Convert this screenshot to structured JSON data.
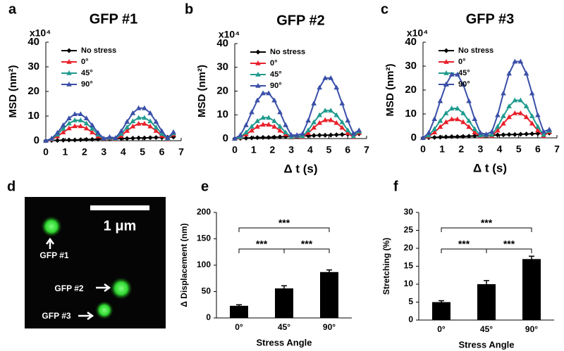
{
  "chart_data": [
    {
      "type": "line",
      "label": "a",
      "title": "GFP #1",
      "y_multiplier": "x10⁴",
      "ylabel": "MSD (nm²)",
      "x": [
        0,
        0.3,
        0.6,
        0.9,
        1.2,
        1.5,
        1.8,
        2.1,
        2.4,
        2.7,
        3.0,
        3.3,
        3.6,
        3.9,
        4.2,
        4.5,
        4.8,
        5.1,
        5.4,
        5.7,
        6.0,
        6.3,
        6.6
      ],
      "xlim": [
        0,
        7
      ],
      "xticks": [
        0,
        1,
        2,
        3,
        4,
        5,
        6,
        7
      ],
      "ylim": [
        0,
        40
      ],
      "yticks": [
        0,
        10,
        20,
        30,
        40
      ],
      "series": [
        {
          "name": "No stress",
          "color": "#000000",
          "marker": "diamond",
          "values": [
            0,
            0.1,
            0.1,
            0.2,
            0.3,
            0.3,
            0.4,
            0.5,
            0.5,
            0.6,
            0.7,
            0.7,
            0.8,
            0.9,
            0.9,
            1.0,
            1.1,
            1.1,
            1.2,
            1.3,
            1.3,
            1.4,
            1.5
          ]
        },
        {
          "name": "0°",
          "color": "#e8202a",
          "marker": "triangle",
          "values": [
            0,
            0.5,
            1.8,
            3.4,
            5.0,
            5.9,
            5.9,
            5.0,
            3.4,
            1.8,
            0.5,
            1.0,
            0.6,
            2.0,
            4.0,
            5.8,
            6.9,
            6.9,
            5.8,
            4.0,
            2.0,
            0.6,
            2.5
          ]
        },
        {
          "name": "45°",
          "color": "#1f9b8e",
          "marker": "triangle",
          "values": [
            0,
            0.7,
            2.5,
            4.9,
            7.0,
            8.3,
            8.3,
            7.0,
            4.9,
            2.5,
            0.7,
            1.2,
            0.8,
            2.8,
            5.4,
            7.9,
            9.3,
            9.3,
            7.9,
            5.4,
            2.8,
            0.8,
            3.0
          ]
        },
        {
          "name": "90°",
          "color": "#3a4fa8",
          "marker": "triangle",
          "values": [
            0,
            0.9,
            3.2,
            6.3,
            9.1,
            10.8,
            10.8,
            9.1,
            6.3,
            3.2,
            0.9,
            1.5,
            1.1,
            3.9,
            7.7,
            11.2,
            13.2,
            13.2,
            11.2,
            7.7,
            3.9,
            1.1,
            3.5
          ]
        }
      ]
    },
    {
      "type": "line",
      "label": "b",
      "title": "GFP #2",
      "y_multiplier": "x10⁴",
      "ylabel": "MSD (nm²)",
      "xlabel": "Δ t (s)",
      "x": [
        0,
        0.3,
        0.6,
        0.9,
        1.2,
        1.5,
        1.8,
        2.1,
        2.4,
        2.7,
        3.0,
        3.3,
        3.6,
        3.9,
        4.2,
        4.5,
        4.8,
        5.1,
        5.4,
        5.7,
        6.0,
        6.3,
        6.6
      ],
      "xlim": [
        0,
        7
      ],
      "xticks": [
        0,
        1,
        2,
        3,
        4,
        5,
        6,
        7
      ],
      "ylim": [
        0,
        40
      ],
      "yticks": [
        0,
        10,
        20,
        30,
        40
      ],
      "series": [
        {
          "name": "No stress",
          "color": "#000000",
          "marker": "diamond",
          "values": [
            0,
            0.1,
            0.2,
            0.3,
            0.4,
            0.5,
            0.5,
            0.6,
            0.7,
            0.8,
            0.9,
            1.0,
            1.1,
            1.2,
            1.3,
            1.4,
            1.4,
            1.5,
            1.6,
            1.7,
            1.8,
            1.9,
            2.0
          ]
        },
        {
          "name": "0°",
          "color": "#e8202a",
          "marker": "triangle",
          "values": [
            0,
            0.5,
            1.8,
            3.4,
            5.0,
            5.9,
            5.9,
            5.0,
            3.4,
            1.8,
            0.5,
            1.0,
            0.6,
            2.3,
            4.6,
            6.6,
            7.8,
            7.8,
            6.6,
            4.6,
            2.3,
            0.6,
            2.5
          ]
        },
        {
          "name": "45°",
          "color": "#1f9b8e",
          "marker": "triangle",
          "values": [
            0,
            0.7,
            2.6,
            5.1,
            7.4,
            8.8,
            8.8,
            7.4,
            5.1,
            2.6,
            0.7,
            1.2,
            0.9,
            3.5,
            6.9,
            9.9,
            11.8,
            11.8,
            9.9,
            6.9,
            3.5,
            0.9,
            3.0
          ]
        },
        {
          "name": "90°",
          "color": "#3a4fa8",
          "marker": "triangle",
          "values": [
            0,
            1.5,
            5.7,
            11.1,
            16.1,
            19.1,
            19.1,
            16.1,
            11.1,
            5.7,
            1.5,
            1.5,
            2.1,
            7.6,
            14.8,
            21.5,
            25.5,
            25.5,
            21.5,
            14.8,
            7.6,
            2.1,
            3.5
          ]
        }
      ]
    },
    {
      "type": "line",
      "label": "c",
      "title": "GFP #3",
      "y_multiplier": "x10⁴",
      "ylabel": "MSD (nm²)",
      "xlabel": "Δ t (s)",
      "x": [
        0,
        0.3,
        0.6,
        0.9,
        1.2,
        1.5,
        1.8,
        2.1,
        2.4,
        2.7,
        3.0,
        3.3,
        3.6,
        3.9,
        4.2,
        4.5,
        4.8,
        5.1,
        5.4,
        5.7,
        6.0,
        6.3,
        6.6
      ],
      "xlim": [
        0,
        7
      ],
      "xticks": [
        0,
        1,
        2,
        3,
        4,
        5,
        6,
        7
      ],
      "ylim": [
        0,
        40
      ],
      "yticks": [
        0,
        10,
        20,
        30,
        40
      ],
      "series": [
        {
          "name": "No stress",
          "color": "#000000",
          "marker": "diamond",
          "values": [
            0,
            0.1,
            0.2,
            0.3,
            0.4,
            0.5,
            0.5,
            0.6,
            0.7,
            0.8,
            0.9,
            1.0,
            1.1,
            1.2,
            1.3,
            1.4,
            1.4,
            1.5,
            1.6,
            1.7,
            1.8,
            1.9,
            2.0
          ]
        },
        {
          "name": "0°",
          "color": "#e8202a",
          "marker": "triangle",
          "values": [
            0,
            0.6,
            2.3,
            4.6,
            6.6,
            7.8,
            7.8,
            6.6,
            4.6,
            2.3,
            0.6,
            1.0,
            0.8,
            3.1,
            6.0,
            8.7,
            10.3,
            10.3,
            8.7,
            6.0,
            3.1,
            0.8,
            2.5
          ]
        },
        {
          "name": "45°",
          "color": "#1f9b8e",
          "marker": "triangle",
          "values": [
            0,
            1.0,
            3.7,
            7.1,
            10.3,
            12.3,
            12.3,
            10.3,
            7.1,
            3.7,
            1.0,
            1.2,
            1.3,
            4.7,
            9.1,
            13.2,
            15.7,
            15.7,
            13.2,
            9.1,
            4.7,
            1.3,
            3.0
          ]
        },
        {
          "name": "90°",
          "color": "#3a4fa8",
          "marker": "triangle",
          "values": [
            0,
            2.1,
            7.9,
            15.4,
            22.3,
            26.5,
            26.5,
            22.3,
            15.4,
            7.9,
            2.1,
            1.5,
            2.6,
            9.5,
            18.6,
            26.9,
            31.9,
            31.9,
            26.9,
            18.6,
            9.5,
            2.6,
            3.5
          ]
        }
      ]
    },
    {
      "type": "bar",
      "label": "e",
      "ylabel": "Δ Displacement (nm)",
      "xlabel": "Stress Angle",
      "categories": [
        "0°",
        "45°",
        "90°"
      ],
      "values": [
        23,
        56,
        87
      ],
      "errors": [
        2,
        5,
        4
      ],
      "color": "#000000",
      "ylim": [
        0,
        200
      ],
      "yticks": [
        0,
        50,
        100,
        150,
        200
      ],
      "significance": [
        {
          "label": "***",
          "between": [
            "0°",
            "45°"
          ]
        },
        {
          "label": "***",
          "between": [
            "45°",
            "90°"
          ]
        },
        {
          "label": "***",
          "between": [
            "0°",
            "90°"
          ]
        }
      ]
    },
    {
      "type": "bar",
      "label": "f",
      "ylabel": "Stretching (%)",
      "xlabel": "Stress Angle",
      "categories": [
        "0°",
        "45°",
        "90°"
      ],
      "values": [
        5,
        10,
        17
      ],
      "errors": [
        0.4,
        1,
        0.8
      ],
      "color": "#000000",
      "ylim": [
        0,
        30
      ],
      "yticks": [
        0,
        5,
        10,
        15,
        20,
        25,
        30
      ],
      "significance": [
        {
          "label": "***",
          "between": [
            "0°",
            "45°"
          ]
        },
        {
          "label": "***",
          "between": [
            "45°",
            "90°"
          ]
        },
        {
          "label": "***",
          "between": [
            "0°",
            "90°"
          ]
        }
      ]
    }
  ],
  "micrograph": {
    "label": "d",
    "scale_bar": "1 μm",
    "labels": [
      "GFP #1",
      "GFP #2",
      "GFP #3"
    ]
  }
}
